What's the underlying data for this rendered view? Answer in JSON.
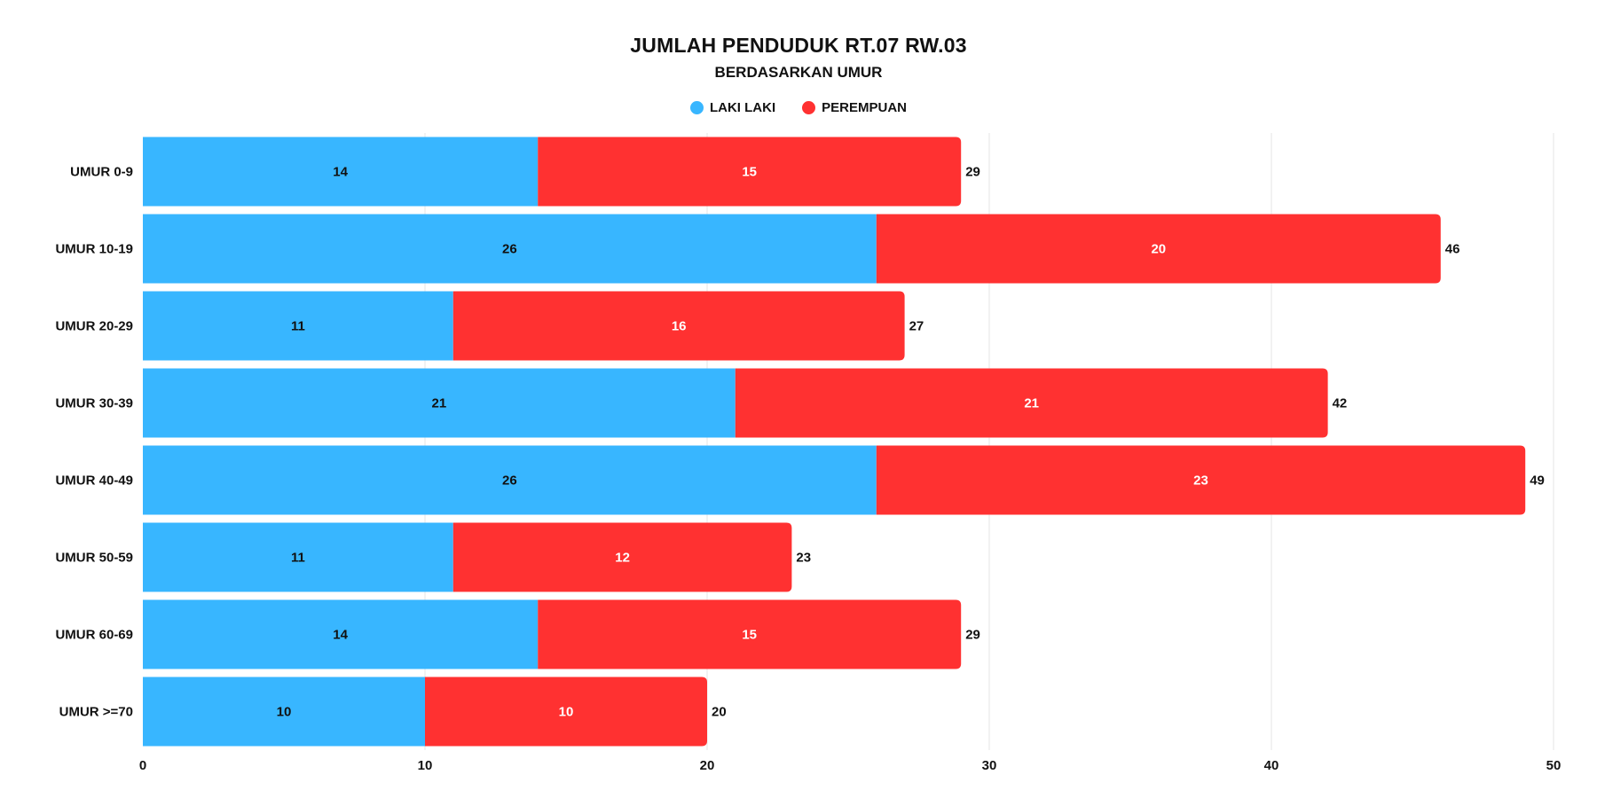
{
  "chart_data": {
    "type": "bar",
    "orientation": "horizontal",
    "stacked": true,
    "title": "JUMLAH PENDUDUK RT.07 RW.03",
    "subtitle": "BERDASARKAN UMUR",
    "categories": [
      "UMUR 0-9",
      "UMUR 10-19",
      "UMUR 20-29",
      "UMUR 30-39",
      "UMUR 40-49",
      "UMUR 50-59",
      "UMUR 60-69",
      "UMUR >=70"
    ],
    "series": [
      {
        "name": "LAKI LAKI",
        "color": "#38b6ff",
        "values": [
          14,
          26,
          11,
          21,
          26,
          11,
          14,
          10
        ]
      },
      {
        "name": "PEREMPUAN",
        "color": "#ff3131",
        "values": [
          15,
          20,
          16,
          21,
          23,
          12,
          15,
          10
        ]
      }
    ],
    "totals": [
      29,
      46,
      27,
      42,
      49,
      23,
      29,
      20
    ],
    "xlim": [
      0,
      50
    ],
    "x_ticks": [
      0,
      10,
      20,
      30,
      40,
      50
    ],
    "grid": true,
    "legend_position": "top-center",
    "data_labels": true
  }
}
